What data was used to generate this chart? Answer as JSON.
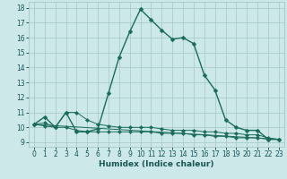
{
  "xlabel": "Humidex (Indice chaleur)",
  "background_color": "#cce8e8",
  "grid_color": "#aacccc",
  "line_color": "#1a6b5a",
  "xlim": [
    -0.5,
    23.5
  ],
  "ylim": [
    8.7,
    18.4
  ],
  "yticks": [
    9,
    10,
    11,
    12,
    13,
    14,
    15,
    16,
    17,
    18
  ],
  "xticks": [
    0,
    1,
    2,
    3,
    4,
    5,
    6,
    7,
    8,
    9,
    10,
    11,
    12,
    13,
    14,
    15,
    16,
    17,
    18,
    19,
    20,
    21,
    22,
    23
  ],
  "series_main": {
    "x": [
      0,
      1,
      2,
      3,
      4,
      5,
      6,
      7,
      8,
      9,
      10,
      11,
      12,
      13,
      14,
      15,
      16,
      17,
      18,
      19,
      20,
      21,
      22,
      23
    ],
    "y": [
      10.2,
      10.7,
      10.0,
      11.0,
      9.7,
      9.7,
      9.9,
      12.3,
      14.7,
      16.4,
      17.9,
      17.2,
      16.5,
      15.9,
      16.0,
      15.6,
      13.5,
      12.5,
      10.5,
      10.0,
      9.8,
      9.8,
      9.2,
      9.2
    ]
  },
  "series_low": {
    "x": [
      0,
      1,
      2,
      3,
      4,
      5,
      6,
      7,
      8,
      9,
      10,
      11,
      12,
      13,
      14,
      15,
      16,
      17,
      18,
      19,
      20,
      21,
      22,
      23
    ],
    "y": [
      10.2,
      10.1,
      10.0,
      10.0,
      9.8,
      9.7,
      9.7,
      9.7,
      9.7,
      9.7,
      9.7,
      9.7,
      9.6,
      9.6,
      9.6,
      9.5,
      9.5,
      9.4,
      9.4,
      9.3,
      9.3,
      9.3,
      9.2,
      9.2
    ]
  },
  "series_mid": {
    "x": [
      0,
      1,
      2,
      3,
      4,
      5,
      6,
      7,
      8,
      9,
      10,
      11,
      12,
      13,
      14,
      15,
      16,
      17,
      18,
      19,
      20,
      21,
      22,
      23
    ],
    "y": [
      10.2,
      10.3,
      10.0,
      11.0,
      11.0,
      10.5,
      10.2,
      10.1,
      10.0,
      10.0,
      10.0,
      10.0,
      9.9,
      9.8,
      9.8,
      9.8,
      9.7,
      9.7,
      9.6,
      9.6,
      9.5,
      9.5,
      9.3,
      9.2
    ]
  },
  "series_line": {
    "x": [
      0,
      23
    ],
    "y": [
      10.2,
      9.2
    ]
  }
}
